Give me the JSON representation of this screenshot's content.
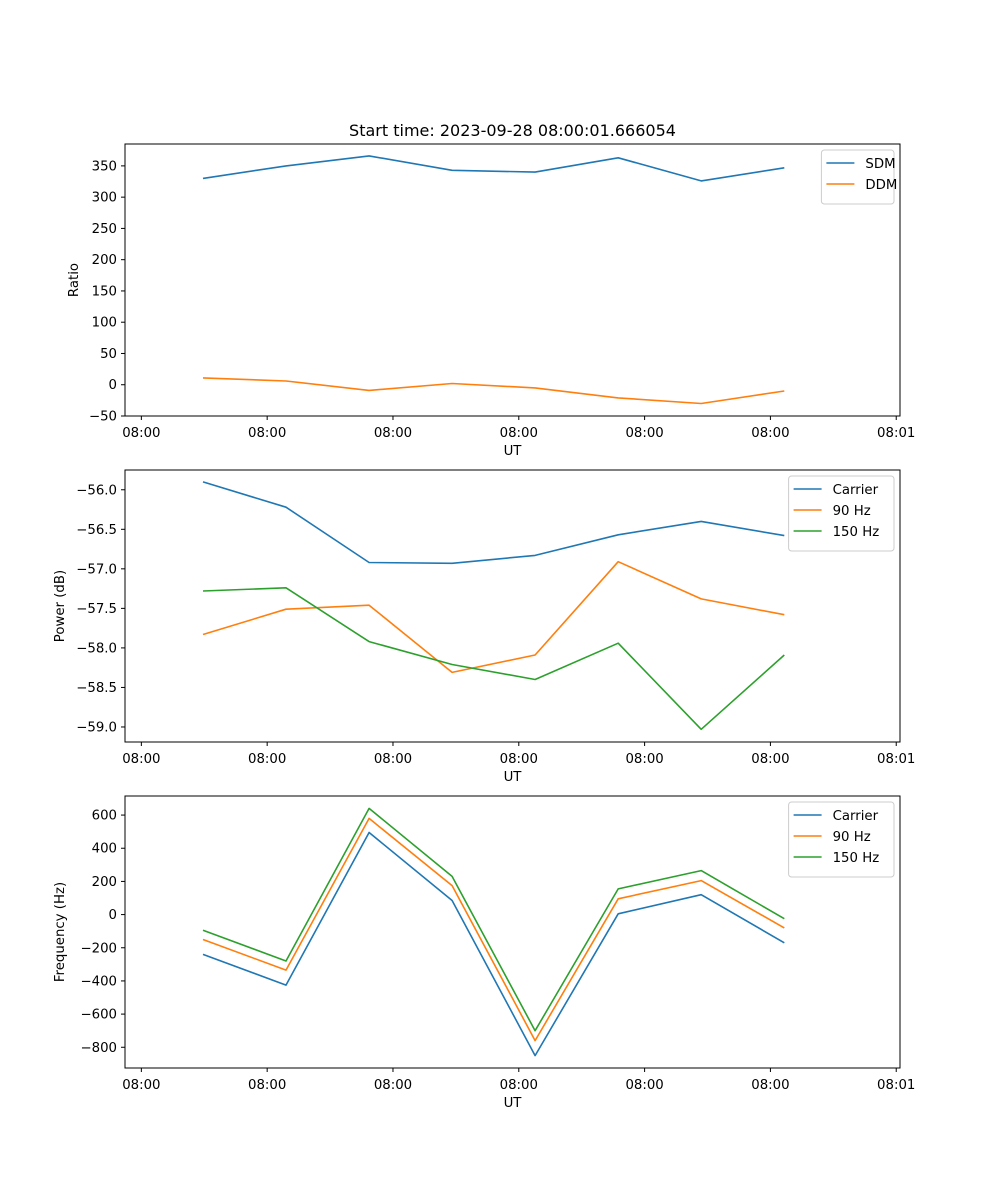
{
  "figure": {
    "title": "Start time: 2023-09-28 08:00:01.666054"
  },
  "colors": {
    "blue": "#1f77b4",
    "orange": "#ff7f0e",
    "green": "#2ca02c"
  },
  "chart_data": [
    {
      "type": "line",
      "title": "Start time: 2023-09-28 08:00:01.666054",
      "xlabel": "UT",
      "ylabel": "Ratio",
      "x_ticks": [
        "08:00",
        "08:00",
        "08:00",
        "08:00",
        "08:00",
        "08:00",
        "08:01"
      ],
      "x_tick_positions": [
        0,
        10,
        20,
        30,
        40,
        50,
        60
      ],
      "xlim": [
        -1.3,
        60.3
      ],
      "ylim": [
        -50,
        385
      ],
      "y_ticks": [
        -50,
        0,
        50,
        100,
        150,
        200,
        250,
        300,
        350
      ],
      "y_tick_labels": [
        "−50",
        "0",
        "50",
        "100",
        "150",
        "200",
        "250",
        "300",
        "350"
      ],
      "grid": false,
      "legend_position": "top-right",
      "x": [
        4.9,
        11.5,
        18.1,
        24.7,
        31.3,
        37.9,
        44.5,
        51.1
      ],
      "series": [
        {
          "name": "SDM",
          "color": "blue",
          "values": [
            330,
            350,
            366,
            343,
            340,
            363,
            326,
            347
          ]
        },
        {
          "name": "DDM",
          "color": "orange",
          "values": [
            11,
            6,
            -9,
            2,
            -5,
            -21,
            -30,
            -10
          ]
        }
      ]
    },
    {
      "type": "line",
      "title": "",
      "xlabel": "UT",
      "ylabel": "Power (dB)",
      "x_ticks": [
        "08:00",
        "08:00",
        "08:00",
        "08:00",
        "08:00",
        "08:00",
        "08:01"
      ],
      "x_tick_positions": [
        0,
        10,
        20,
        30,
        40,
        50,
        60
      ],
      "xlim": [
        -1.3,
        60.3
      ],
      "ylim": [
        -59.19,
        -55.75
      ],
      "y_ticks": [
        -59.0,
        -58.5,
        -58.0,
        -57.5,
        -57.0,
        -56.5,
        -56.0
      ],
      "y_tick_labels": [
        "−59.0",
        "−58.5",
        "−58.0",
        "−57.5",
        "−57.0",
        "−56.5",
        "−56.0"
      ],
      "grid": false,
      "legend_position": "top-right",
      "x": [
        4.9,
        11.5,
        18.1,
        24.7,
        31.3,
        37.9,
        44.5,
        51.1
      ],
      "series": [
        {
          "name": "Carrier",
          "color": "blue",
          "values": [
            -55.9,
            -56.22,
            -56.92,
            -56.93,
            -56.83,
            -56.57,
            -56.4,
            -56.58
          ]
        },
        {
          "name": "90 Hz",
          "color": "orange",
          "values": [
            -57.83,
            -57.51,
            -57.46,
            -58.31,
            -58.09,
            -56.91,
            -57.38,
            -57.58
          ]
        },
        {
          "name": "150 Hz",
          "color": "green",
          "values": [
            -57.28,
            -57.24,
            -57.92,
            -58.21,
            -58.4,
            -57.94,
            -59.03,
            -58.09
          ]
        }
      ]
    },
    {
      "type": "line",
      "title": "",
      "xlabel": "UT",
      "ylabel": "Frequency (Hz)",
      "x_ticks": [
        "08:00",
        "08:00",
        "08:00",
        "08:00",
        "08:00",
        "08:00",
        "08:01"
      ],
      "x_tick_positions": [
        0,
        10,
        20,
        30,
        40,
        50,
        60
      ],
      "xlim": [
        -1.3,
        60.3
      ],
      "ylim": [
        -925,
        715
      ],
      "y_ticks": [
        -800,
        -600,
        -400,
        -200,
        0,
        200,
        400,
        600
      ],
      "y_tick_labels": [
        "−800",
        "−600",
        "−400",
        "−200",
        "0",
        "200",
        "400",
        "600"
      ],
      "grid": false,
      "legend_position": "top-right",
      "x": [
        4.9,
        11.5,
        18.1,
        24.7,
        31.3,
        37.9,
        44.5,
        51.1
      ],
      "series": [
        {
          "name": "Carrier",
          "color": "blue",
          "values": [
            -240,
            -425,
            495,
            85,
            -850,
            5,
            120,
            -170
          ]
        },
        {
          "name": "90 Hz",
          "color": "orange",
          "values": [
            -150,
            -335,
            580,
            175,
            -760,
            95,
            205,
            -80
          ]
        },
        {
          "name": "150 Hz",
          "color": "green",
          "values": [
            -95,
            -280,
            640,
            230,
            -700,
            155,
            265,
            -25
          ]
        }
      ]
    }
  ]
}
